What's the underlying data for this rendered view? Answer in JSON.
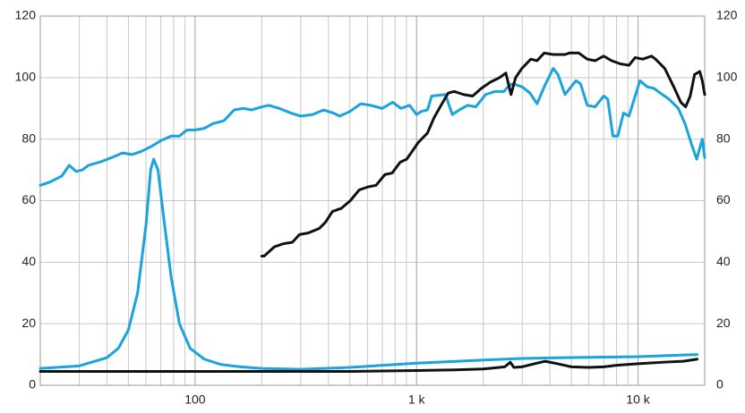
{
  "chart_data": {
    "type": "line",
    "xscale": "log",
    "grid": true,
    "xlim": [
      20,
      20000
    ],
    "ylim": [
      0,
      120
    ],
    "y2lim": [
      0,
      120
    ],
    "xticks": [
      100,
      {
        "value": 1000,
        "label": "1 k"
      },
      {
        "value": 10000,
        "label": "10 k"
      }
    ],
    "yticks": [
      0,
      20,
      40,
      60,
      80,
      100,
      120
    ],
    "y2ticks": [
      0,
      20,
      40,
      60,
      80,
      100,
      120
    ],
    "series": [
      {
        "color": "#1aa3dc",
        "x": [
          20,
          22,
          25,
          27,
          29,
          31,
          33,
          37,
          42,
          47,
          52,
          57,
          63,
          70,
          78,
          85,
          92,
          100,
          110,
          120,
          135,
          150,
          165,
          180,
          200,
          215,
          240,
          270,
          300,
          340,
          380,
          420,
          450,
          500,
          560,
          620,
          700,
          780,
          850,
          930,
          1000,
          1050,
          1120,
          1170,
          1350,
          1450,
          1560,
          1700,
          1850,
          2050,
          2260,
          2480,
          2620,
          2720,
          3000,
          3250,
          3500,
          3770,
          4140,
          4350,
          4680,
          5240,
          5500,
          5900,
          6400,
          7000,
          7300,
          7700,
          8100,
          8600,
          9100,
          10200,
          11000,
          11800,
          12600,
          13800,
          15200,
          16300,
          17500,
          18400,
          19500,
          20000
        ],
        "values": [
          65,
          66,
          68,
          71.5,
          69.5,
          70,
          71.5,
          72.5,
          74,
          75.5,
          75,
          76,
          77.5,
          79.5,
          81,
          81,
          83,
          83,
          83.5,
          85,
          86,
          89.5,
          90,
          89.5,
          90.5,
          91,
          90,
          88.5,
          87.5,
          88,
          89.5,
          88.5,
          87.5,
          89,
          91.5,
          91,
          90,
          92,
          90,
          91,
          88,
          89,
          89.5,
          94,
          94.5,
          88,
          89.5,
          91,
          90.5,
          94.5,
          95.5,
          95.5,
          97.5,
          98,
          97,
          95,
          91.5,
          97,
          103,
          101,
          94.5,
          99,
          98,
          91,
          90.5,
          94,
          93,
          81,
          81,
          88.5,
          87.5,
          99,
          97,
          96.5,
          95,
          93,
          90,
          85,
          78,
          73.5,
          80,
          74
        ]
      },
      {
        "color": "#111111",
        "x": [
          200,
          205,
          228,
          250,
          275,
          296,
          324,
          364,
          388,
          417,
          457,
          502,
          551,
          605,
          656,
          720,
          776,
          843,
          903,
          1020,
          1120,
          1200,
          1290,
          1390,
          1480,
          1630,
          1790,
          1960,
          2150,
          2370,
          2530,
          2670,
          2800,
          2990,
          3280,
          3500,
          3770,
          4140,
          4680,
          4900,
          5400,
          5900,
          6400,
          7000,
          7600,
          8300,
          9100,
          9700,
          10500,
          11500,
          12000,
          13200,
          14500,
          15600,
          16400,
          17200,
          18000,
          19000,
          19500,
          20000
        ],
        "values": [
          42,
          42,
          45,
          46,
          46.5,
          49,
          49.5,
          51,
          53,
          56.5,
          57.5,
          60,
          63.5,
          64.5,
          65,
          68.5,
          69,
          72.5,
          73.5,
          79,
          82,
          87,
          91,
          95,
          95.5,
          94.5,
          94,
          96.5,
          98.5,
          100,
          101.5,
          94.5,
          100,
          103,
          106,
          105.5,
          108,
          107.5,
          107.5,
          108,
          108,
          106,
          105.5,
          107,
          105.5,
          104.5,
          104,
          106.5,
          106,
          107,
          106,
          103,
          97,
          92,
          90.5,
          94,
          101,
          102,
          99,
          94.5
        ]
      },
      {
        "color": "#1aa3dc",
        "x": [
          20,
          30,
          40,
          45,
          50,
          55,
          60,
          63,
          65,
          68,
          72,
          78,
          85,
          95,
          110,
          130,
          160,
          200,
          300,
          500,
          1000,
          2000,
          3000,
          5000,
          10000,
          18500
        ],
        "values": [
          5.5,
          6.3,
          9,
          12,
          18,
          30,
          52,
          70,
          73.5,
          70,
          55,
          35,
          20,
          12,
          8.5,
          6.8,
          6,
          5.5,
          5.2,
          5.8,
          7.2,
          8.2,
          8.7,
          9,
          9.3,
          10
        ]
      },
      {
        "color": "#111111",
        "x": [
          20,
          100,
          500,
          1000,
          1500,
          2000,
          2500,
          2650,
          2750,
          3000,
          3500,
          3800,
          4200,
          5000,
          6000,
          7000,
          8000,
          10000,
          13000,
          16000,
          18500
        ],
        "values": [
          4.5,
          4.5,
          4.5,
          4.8,
          5,
          5.3,
          6,
          7.5,
          5.8,
          6,
          7.2,
          7.8,
          7.2,
          6,
          5.8,
          6,
          6.5,
          7,
          7.5,
          7.8,
          8.5
        ]
      }
    ]
  }
}
